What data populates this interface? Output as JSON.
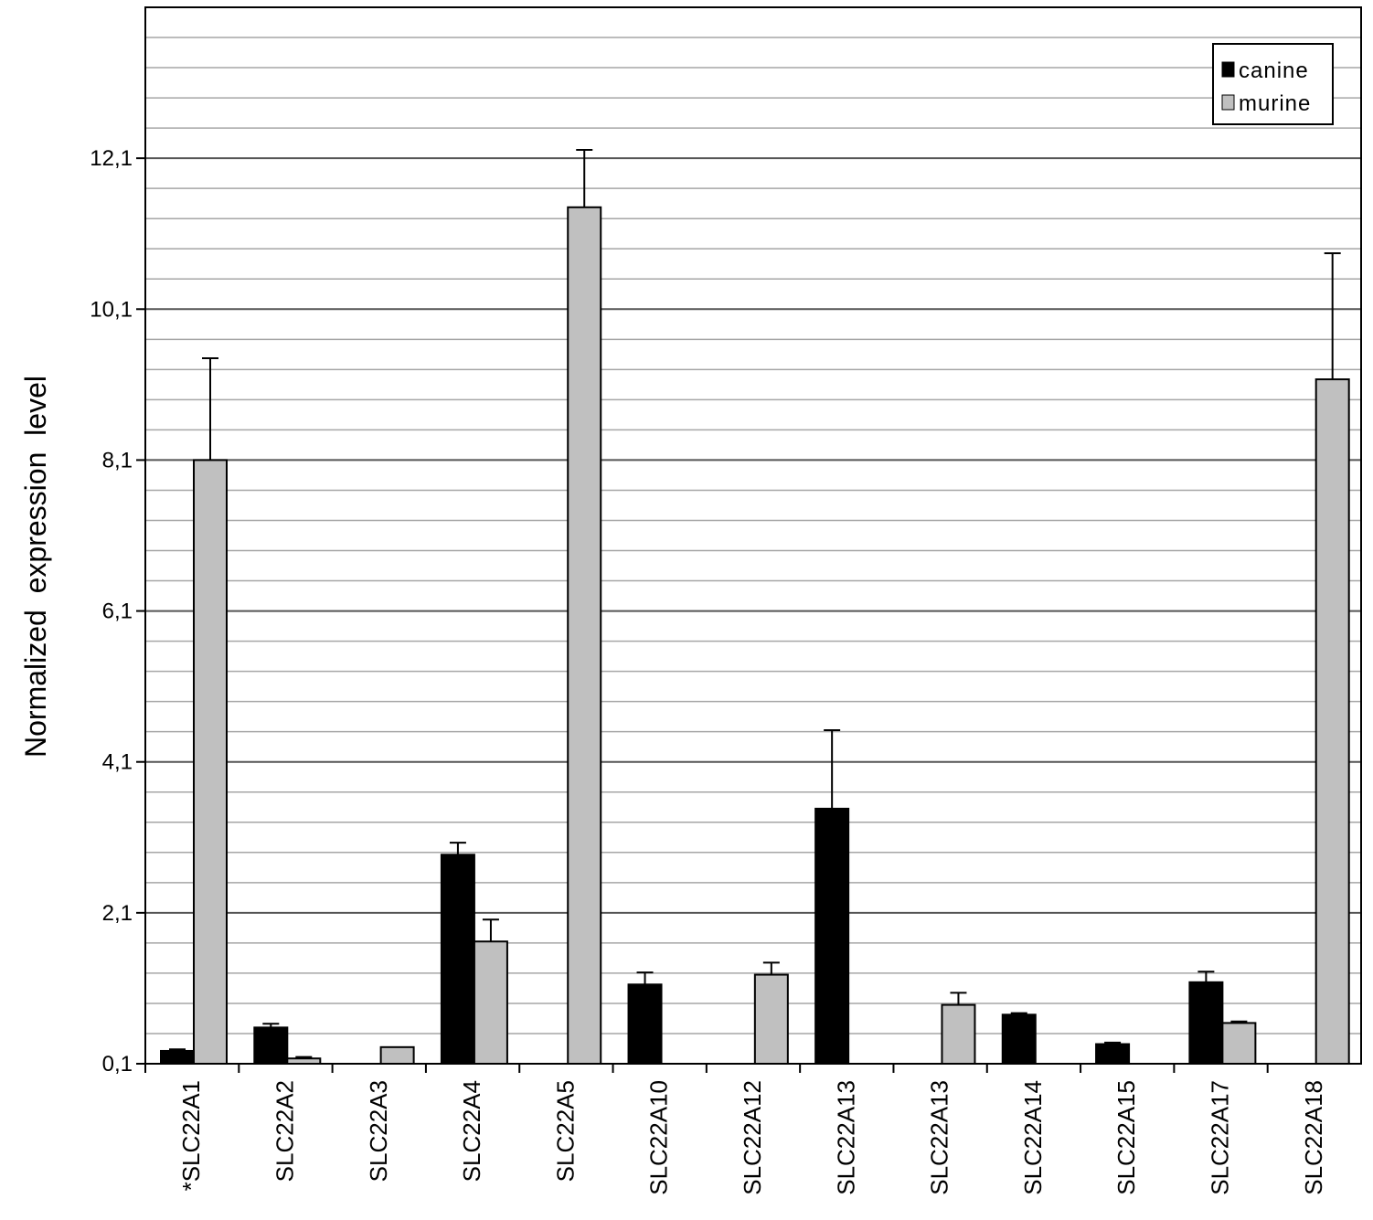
{
  "chart_data": {
    "type": "bar",
    "title": "",
    "xlabel": "",
    "ylabel": "Normalized  expression  level",
    "ylim": [
      0.1,
      14.1
    ],
    "ytick_values": [
      0.1,
      2.1,
      4.1,
      6.1,
      8.1,
      10.1,
      12.1
    ],
    "ytick_labels": [
      "0,1",
      "2,1",
      "4,1",
      "6,1",
      "8,1",
      "10,1",
      "12,1"
    ],
    "minor_grid_step": 0.4,
    "grid": true,
    "legend_position": "top-right",
    "categories": [
      "*SLC22A1",
      "SLC22A2",
      "SLC22A3",
      "SLC22A4",
      "SLC22A5",
      "SLC22A10",
      "SLC22A12",
      "SLC22A13",
      "SLC22A13",
      "SLC22A14",
      "SLC22A15",
      "SLC22A17",
      "SLC22A18"
    ],
    "series": [
      {
        "name": "canine",
        "color": "#000000",
        "values": [
          0.27,
          0.58,
          null,
          2.87,
          null,
          1.15,
          null,
          3.48,
          null,
          0.75,
          0.36,
          1.18,
          null
        ],
        "errors": [
          0.02,
          0.05,
          null,
          0.16,
          null,
          0.16,
          null,
          1.04,
          null,
          0.02,
          0.02,
          0.14,
          null
        ]
      },
      {
        "name": "murine",
        "color": "#c0c0c0",
        "values": [
          8.1,
          0.17,
          0.32,
          1.72,
          11.45,
          null,
          1.28,
          null,
          0.88,
          null,
          null,
          0.64,
          9.17
        ],
        "errors": [
          1.35,
          0.02,
          null,
          0.29,
          0.76,
          null,
          0.16,
          null,
          0.16,
          null,
          null,
          0.02,
          1.67
        ]
      }
    ]
  }
}
